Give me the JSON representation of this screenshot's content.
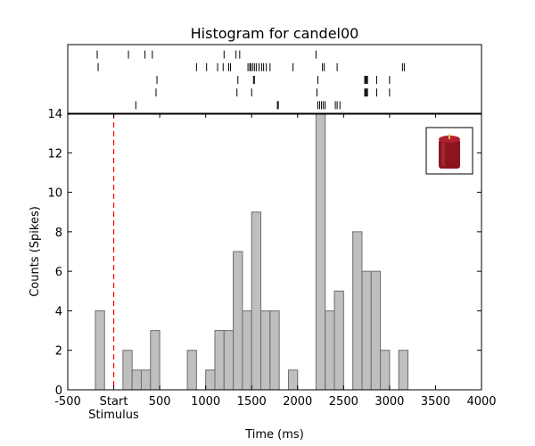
{
  "chart_data": {
    "type": "bar",
    "title": "Histogram for candel00",
    "xlabel": "Time (ms)",
    "ylabel": "Counts (Spikes)",
    "xlim": [
      -500,
      4000
    ],
    "ylim": [
      0,
      14
    ],
    "x_ticks": [
      -500,
      0,
      500,
      1000,
      1500,
      2000,
      2500,
      3000,
      3500,
      4000
    ],
    "x_tick_labels": [
      "-500",
      "Start",
      "500",
      "1000",
      "1500",
      "2000",
      "2500",
      "3000",
      "3500",
      "4000"
    ],
    "x_sublabel": "Stimulus",
    "y_ticks": [
      0,
      2,
      4,
      6,
      8,
      10,
      12,
      14
    ],
    "bin_width": 100,
    "bins": [
      {
        "x": -200,
        "value": 4
      },
      {
        "x": 100,
        "value": 2
      },
      {
        "x": 200,
        "value": 1
      },
      {
        "x": 300,
        "value": 1
      },
      {
        "x": 400,
        "value": 3
      },
      {
        "x": 800,
        "value": 2
      },
      {
        "x": 1000,
        "value": 1
      },
      {
        "x": 1100,
        "value": 3
      },
      {
        "x": 1200,
        "value": 3
      },
      {
        "x": 1300,
        "value": 7
      },
      {
        "x": 1400,
        "value": 4
      },
      {
        "x": 1500,
        "value": 9
      },
      {
        "x": 1600,
        "value": 4
      },
      {
        "x": 1700,
        "value": 4
      },
      {
        "x": 1900,
        "value": 1
      },
      {
        "x": 2200,
        "value": 14
      },
      {
        "x": 2300,
        "value": 4
      },
      {
        "x": 2400,
        "value": 5
      },
      {
        "x": 2600,
        "value": 8
      },
      {
        "x": 2700,
        "value": 6
      },
      {
        "x": 2800,
        "value": 6
      },
      {
        "x": 2900,
        "value": 2
      },
      {
        "x": 3100,
        "value": 2
      }
    ],
    "stimulus_line_x": 0,
    "raster": [
      [
        -180,
        160,
        340,
        420,
        1200,
        1330,
        1370,
        2200
      ],
      [
        -170,
        900,
        1010,
        1130,
        1190,
        1250,
        1270,
        1460,
        1480,
        1490,
        1510,
        1530,
        1550,
        1580,
        1610,
        1630,
        1660,
        1700,
        1950,
        2270,
        2290,
        2430,
        3140,
        3160
      ],
      [
        470,
        1350,
        1520,
        1530,
        2220,
        2730,
        2740,
        2750,
        2760,
        2860,
        3000
      ],
      [
        460,
        1340,
        1500,
        2210,
        2730,
        2740,
        2750,
        2760,
        2860,
        3000
      ],
      [
        240,
        1780,
        1790,
        2220,
        2240,
        2260,
        2280,
        2300,
        2410,
        2430,
        2460
      ]
    ],
    "grid": false,
    "colors": {
      "bar_fill": "#bfbfbf",
      "bar_edge": "#6d6d6d",
      "stimulus_line": "#ff0000"
    },
    "inset_icon": "red-candle-icon"
  }
}
